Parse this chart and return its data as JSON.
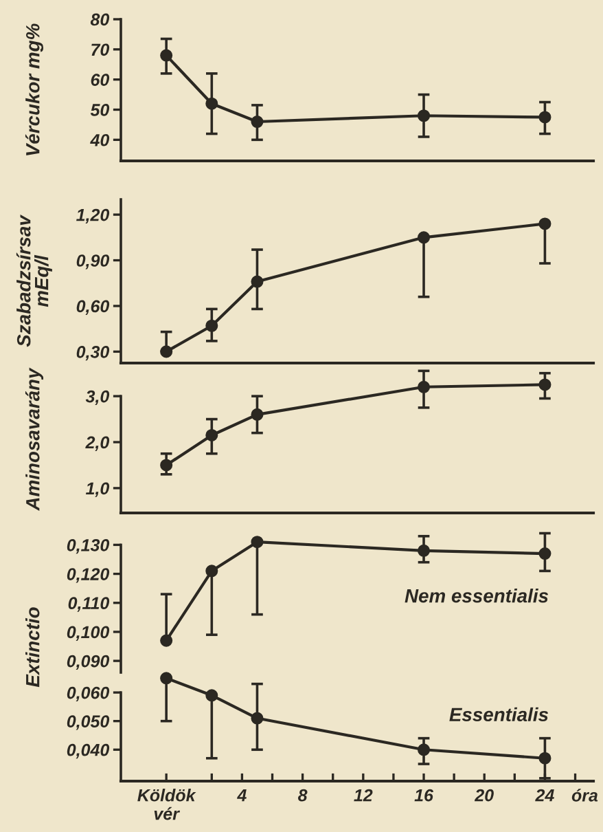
{
  "chart_data": [
    {
      "type": "line",
      "ylabel": "Vércukor mg%",
      "x": [
        -1,
        2,
        5,
        16,
        24
      ],
      "xlim": [
        -4,
        27.2
      ],
      "tick_labels": "y",
      "ylim": [
        33,
        80
      ],
      "yticks": [
        40,
        50,
        60,
        70,
        80
      ],
      "marker": "circle",
      "line_style": "solid",
      "series": [
        {
          "color": "#2b2822",
          "values": [
            68,
            52,
            46,
            48,
            47.5
          ],
          "errors": [
            [
              62,
              73.5
            ],
            [
              42,
              62
            ],
            [
              40,
              51.5
            ],
            [
              41,
              55
            ],
            [
              42,
              52.5
            ]
          ]
        }
      ]
    },
    {
      "type": "line",
      "ylabel": "Szabadzsírsav\nmEq/l",
      "x": [
        -1,
        2,
        5,
        16,
        24
      ],
      "xlim": [
        -4,
        27.2
      ],
      "tick_labels": "y",
      "ylim": [
        0.225,
        1.3
      ],
      "yticks": [
        {
          "value": 0.3,
          "label": "0,30"
        },
        {
          "value": 0.6,
          "label": "0,60"
        },
        {
          "value": 0.9,
          "label": "0,90"
        },
        {
          "value": 1.2,
          "label": "1,20"
        }
      ],
      "marker": "circle",
      "line_style": "solid",
      "series": [
        {
          "color": "#2b2822",
          "values": [
            0.3,
            0.47,
            0.76,
            1.05,
            1.14
          ],
          "errors": [
            [
              0.3,
              0.43
            ],
            [
              0.37,
              0.58
            ],
            [
              0.58,
              0.97
            ],
            [
              0.66,
              1.05
            ],
            [
              0.88,
              1.14
            ]
          ]
        }
      ]
    },
    {
      "type": "line",
      "ylabel": "Aminosavarány",
      "x": [
        -1,
        2,
        5,
        16,
        24
      ],
      "xlim": [
        -4,
        27.2
      ],
      "tick_labels": "y",
      "ylim": [
        0.46,
        3.66
      ],
      "yticks": [
        {
          "value": 1,
          "label": "1,0"
        },
        {
          "value": 2,
          "label": "2,0"
        },
        {
          "value": 3,
          "label": "3,0"
        }
      ],
      "marker": "circle",
      "line_style": "solid",
      "series": [
        {
          "color": "#2b2822",
          "values": [
            1.5,
            2.15,
            2.6,
            3.2,
            3.25
          ],
          "errors": [
            [
              1.3,
              1.75
            ],
            [
              1.75,
              2.5
            ],
            [
              2.2,
              3.0
            ],
            [
              2.75,
              3.55
            ],
            [
              2.95,
              3.5
            ]
          ]
        }
      ]
    },
    {
      "type": "line",
      "ylabel": "Extinctio",
      "x": [
        -1,
        2,
        5,
        16,
        24
      ],
      "xlim": [
        -4,
        27.2
      ],
      "tick_labels": "y",
      "ylim": [
        0.086,
        0.141
      ],
      "yticks": [
        {
          "value": 0.09,
          "label": "0,090"
        },
        {
          "value": 0.1,
          "label": "0,100"
        },
        {
          "value": 0.11,
          "label": "0,110"
        },
        {
          "value": 0.12,
          "label": "0,120"
        },
        {
          "value": 0.13,
          "label": "0,130"
        }
      ],
      "marker": "circle",
      "line_style": "solid",
      "series": [
        {
          "name": "Nem essentialis",
          "color": "#2b2822",
          "values": [
            0.097,
            0.121,
            0.131,
            0.128,
            0.127
          ],
          "errors": [
            [
              0.097,
              0.113
            ],
            [
              0.099,
              0.121
            ],
            [
              0.106,
              0.131
            ],
            [
              0.124,
              0.133
            ],
            [
              0.121,
              0.134
            ]
          ]
        }
      ]
    },
    {
      "type": "line",
      "xlabel": "óra",
      "x": [
        -1,
        2,
        5,
        16,
        24
      ],
      "xlim": [
        -4,
        27.2
      ],
      "xticks": [
        {
          "value": -1,
          "label": "Köldök\nvér"
        },
        {
          "value": 2,
          "label": null
        },
        4,
        {
          "value": 6,
          "label": null
        },
        8,
        {
          "value": 10,
          "label": null
        },
        12,
        {
          "value": 14,
          "label": null
        },
        16,
        {
          "value": 18,
          "label": null
        },
        20,
        {
          "value": 22,
          "label": null
        },
        24,
        {
          "value": 26,
          "label": null
        }
      ],
      "ylim": [
        0.029,
        0.067
      ],
      "yticks": [
        {
          "value": 0.04,
          "label": "0,040"
        },
        {
          "value": 0.05,
          "label": "0,050"
        },
        {
          "value": 0.06,
          "label": "0,060"
        }
      ],
      "marker": "circle",
      "line_style": "solid",
      "series": [
        {
          "name": "Essentialis",
          "color": "#2b2822",
          "values": [
            0.065,
            0.059,
            0.051,
            0.04,
            0.037
          ],
          "errors": [
            [
              0.05,
              0.065
            ],
            [
              0.037,
              0.059
            ],
            [
              0.04,
              0.063
            ],
            [
              0.035,
              0.044
            ],
            [
              0.03,
              0.044
            ]
          ]
        }
      ]
    }
  ]
}
